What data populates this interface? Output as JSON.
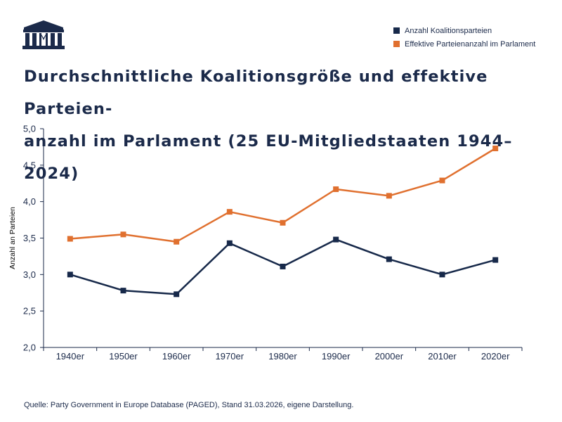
{
  "header": {
    "logo_icon": "classical-building-icon",
    "title": "Durchschnittliche Koalitionsgröße und effektive Parteien-anzahl im Parlament (25 EU-Mitgliedstaaten 1944–2024)",
    "title_line1": "Durchschnittliche Koalitionsgröße und effektive Parteien-",
    "title_line2": "anzahl im Parlament (25 EU-Mitgliedstaaten 1944–2024)"
  },
  "legend": [
    {
      "label": "Anzahl Koalitionsparteien",
      "color": "#17294a"
    },
    {
      "label": "Effektive Parteienanzahl im Parlament",
      "color": "#e0702f"
    }
  ],
  "source": "Quelle: Party Government in Europe Database (PAGED), Stand 31.03.2026, eigene Darstellung.",
  "chart_data": {
    "type": "line",
    "title": "Durchschnittliche Koalitionsgröße und effektive Parteien-anzahl im Parlament (25 EU-Mitgliedstaaten 1944–2024)",
    "xlabel": "",
    "ylabel": "Anzahl an Parteien",
    "categories": [
      "1940er",
      "1950er",
      "1960er",
      "1970er",
      "1980er",
      "1990er",
      "2000er",
      "2010er",
      "2020er"
    ],
    "ylim": [
      2.0,
      5.0
    ],
    "yticks": [
      "2,0",
      "2,5",
      "3,0",
      "3,5",
      "4,0",
      "4,5",
      "5,0"
    ],
    "ytick_values": [
      2.0,
      2.5,
      3.0,
      3.5,
      4.0,
      4.5,
      5.0
    ],
    "grid": false,
    "legend_position": "top-right",
    "series": [
      {
        "name": "Anzahl Koalitionsparteien",
        "color": "#17294a",
        "values": [
          3.0,
          2.78,
          2.73,
          3.43,
          3.11,
          3.48,
          3.21,
          3.0,
          3.2
        ]
      },
      {
        "name": "Effektive Parteienanzahl im Parlament",
        "color": "#e0702f",
        "values": [
          3.49,
          3.55,
          3.45,
          3.86,
          3.71,
          4.17,
          4.08,
          4.29,
          4.73
        ]
      }
    ]
  }
}
